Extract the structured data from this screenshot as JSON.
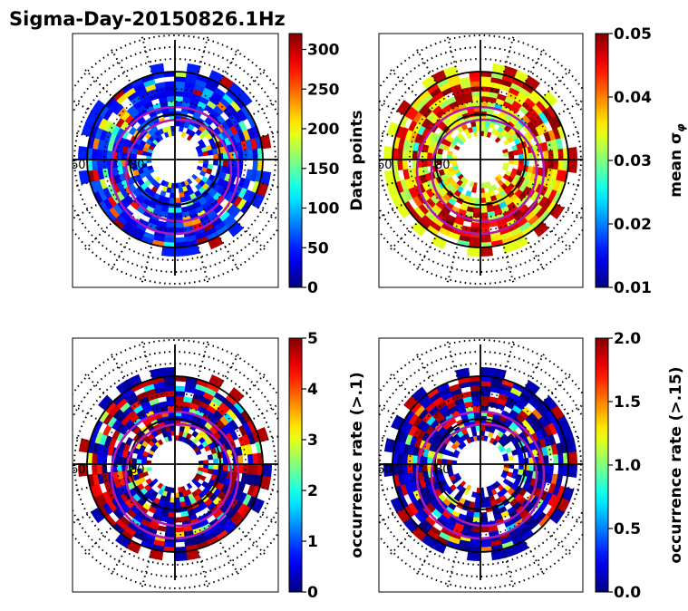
{
  "figure": {
    "title": "Sigma-Day-20150826.1Hz"
  },
  "chart_data": [
    {
      "type": "heatmap",
      "projection": "polar",
      "panel": "top-left",
      "colormap": "jet",
      "colorbar": {
        "label": "Data points",
        "min": 0,
        "max": 320,
        "ticks": [
          0,
          50,
          100,
          150,
          200,
          250,
          300
        ],
        "tick_labels": [
          "0",
          "50",
          "100",
          "150",
          "200",
          "250",
          "300"
        ]
      },
      "ring_labels": [
        "60",
        "80"
      ],
      "typical_value_fraction": 0.15,
      "high_value_fraction": 0.05
    },
    {
      "type": "heatmap",
      "projection": "polar",
      "panel": "top-right",
      "colormap": "jet",
      "colorbar": {
        "label": "mean σ",
        "label_subscript": "φ",
        "min": 0.01,
        "max": 0.05,
        "ticks": [
          0.01,
          0.02,
          0.03,
          0.04,
          0.05
        ],
        "tick_labels": [
          "0.01",
          "0.02",
          "0.03",
          "0.04",
          "0.05"
        ]
      },
      "ring_labels": [
        "60",
        "80"
      ],
      "typical_value_fraction": 0.6,
      "high_value_fraction": 0.35
    },
    {
      "type": "heatmap",
      "projection": "polar",
      "panel": "bottom-left",
      "colormap": "jet",
      "colorbar": {
        "label": "occurrence rate (>.1)",
        "min": 0,
        "max": 5,
        "ticks": [
          0,
          1,
          2,
          3,
          4,
          5
        ],
        "tick_labels": [
          "0",
          "1",
          "2",
          "3",
          "4",
          "5"
        ]
      },
      "ring_labels": [
        "60",
        "80"
      ],
      "typical_value_fraction": 0.05,
      "high_value_fraction": 0.3
    },
    {
      "type": "heatmap",
      "projection": "polar",
      "panel": "bottom-right",
      "colormap": "jet",
      "colorbar": {
        "label": "occurrence rate (>.15)",
        "min": 0.0,
        "max": 2.0,
        "ticks": [
          0.0,
          0.5,
          1.0,
          1.5,
          2.0
        ],
        "tick_labels": [
          "0.0",
          "0.5",
          "1.0",
          "1.5",
          "2.0"
        ]
      },
      "ring_labels": [
        "60",
        "80"
      ],
      "typical_value_fraction": 0.05,
      "high_value_fraction": 0.2
    }
  ],
  "colors": {
    "oval": "#b01ab4",
    "axes": "#000000",
    "background": "#ffffff"
  }
}
